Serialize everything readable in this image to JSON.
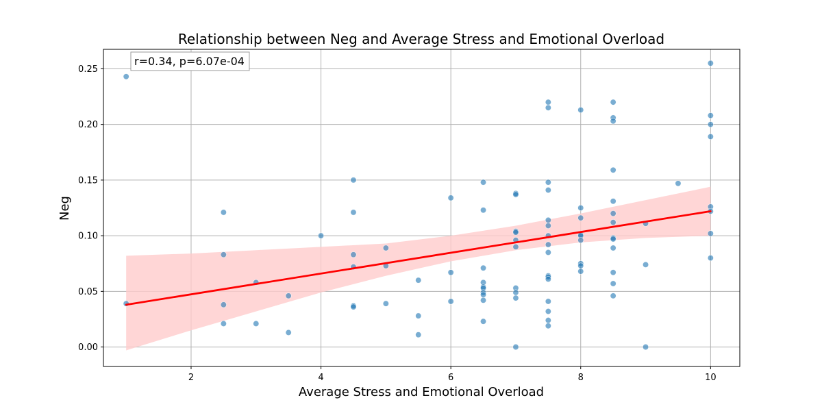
{
  "chart_data": {
    "type": "scatter",
    "title": "Relationship between Neg and Average Stress and Emotional Overload",
    "xlabel": "Average Stress and Emotional Overload",
    "ylabel": "Neg",
    "xlim": [
      0.65,
      10.45
    ],
    "ylim": [
      -0.0175,
      0.2675
    ],
    "xticks": [
      {
        "value": 2,
        "label": "2"
      },
      {
        "value": 4,
        "label": "4"
      },
      {
        "value": 6,
        "label": "6"
      },
      {
        "value": 8,
        "label": "8"
      },
      {
        "value": 10,
        "label": "10"
      }
    ],
    "yticks": [
      {
        "value": 0.0,
        "label": "0.00"
      },
      {
        "value": 0.05,
        "label": "0.05"
      },
      {
        "value": 0.1,
        "label": "0.10"
      },
      {
        "value": 0.15,
        "label": "0.15"
      },
      {
        "value": 0.2,
        "label": "0.20"
      },
      {
        "value": 0.25,
        "label": "0.25"
      }
    ],
    "grid": true,
    "annotation": "r=0.34, p=6.07e-04",
    "points": [
      [
        1.0,
        0.243
      ],
      [
        1.0,
        0.039
      ],
      [
        2.5,
        0.121
      ],
      [
        2.5,
        0.083
      ],
      [
        2.5,
        0.038
      ],
      [
        2.5,
        0.021
      ],
      [
        3.0,
        0.058
      ],
      [
        3.0,
        0.021
      ],
      [
        3.5,
        0.046
      ],
      [
        3.5,
        0.013
      ],
      [
        4.0,
        0.1
      ],
      [
        4.5,
        0.15
      ],
      [
        4.5,
        0.121
      ],
      [
        4.5,
        0.083
      ],
      [
        4.5,
        0.072
      ],
      [
        4.5,
        0.037
      ],
      [
        4.5,
        0.036
      ],
      [
        5.0,
        0.089
      ],
      [
        5.0,
        0.073
      ],
      [
        5.0,
        0.039
      ],
      [
        5.5,
        0.06
      ],
      [
        5.5,
        0.028
      ],
      [
        5.5,
        0.011
      ],
      [
        6.0,
        0.134
      ],
      [
        6.0,
        0.067
      ],
      [
        6.0,
        0.041
      ],
      [
        6.5,
        0.148
      ],
      [
        6.5,
        0.123
      ],
      [
        6.5,
        0.071
      ],
      [
        6.5,
        0.058
      ],
      [
        6.5,
        0.054
      ],
      [
        6.5,
        0.053
      ],
      [
        6.5,
        0.049
      ],
      [
        6.5,
        0.047
      ],
      [
        6.5,
        0.042
      ],
      [
        6.5,
        0.023
      ],
      [
        7.0,
        0.138
      ],
      [
        7.0,
        0.137
      ],
      [
        7.0,
        0.104
      ],
      [
        7.0,
        0.103
      ],
      [
        7.0,
        0.096
      ],
      [
        7.0,
        0.09
      ],
      [
        7.0,
        0.053
      ],
      [
        7.0,
        0.049
      ],
      [
        7.0,
        0.044
      ],
      [
        7.0,
        0.0
      ],
      [
        7.5,
        0.22
      ],
      [
        7.5,
        0.215
      ],
      [
        7.5,
        0.148
      ],
      [
        7.5,
        0.141
      ],
      [
        7.5,
        0.114
      ],
      [
        7.5,
        0.109
      ],
      [
        7.5,
        0.1
      ],
      [
        7.5,
        0.092
      ],
      [
        7.5,
        0.085
      ],
      [
        7.5,
        0.064
      ],
      [
        7.5,
        0.063
      ],
      [
        7.5,
        0.061
      ],
      [
        7.5,
        0.041
      ],
      [
        7.5,
        0.032
      ],
      [
        7.5,
        0.024
      ],
      [
        7.5,
        0.019
      ],
      [
        8.0,
        0.213
      ],
      [
        8.0,
        0.125
      ],
      [
        8.0,
        0.116
      ],
      [
        8.0,
        0.101
      ],
      [
        8.0,
        0.1
      ],
      [
        8.0,
        0.096
      ],
      [
        8.0,
        0.075
      ],
      [
        8.0,
        0.073
      ],
      [
        8.0,
        0.068
      ],
      [
        8.5,
        0.22
      ],
      [
        8.5,
        0.206
      ],
      [
        8.5,
        0.203
      ],
      [
        8.5,
        0.159
      ],
      [
        8.5,
        0.131
      ],
      [
        8.5,
        0.12
      ],
      [
        8.5,
        0.112
      ],
      [
        8.5,
        0.098
      ],
      [
        8.5,
        0.097
      ],
      [
        8.5,
        0.089
      ],
      [
        8.5,
        0.067
      ],
      [
        8.5,
        0.057
      ],
      [
        8.5,
        0.046
      ],
      [
        9.0,
        0.111
      ],
      [
        9.0,
        0.074
      ],
      [
        9.0,
        0.0
      ],
      [
        9.5,
        0.147
      ],
      [
        10.0,
        0.255
      ],
      [
        10.0,
        0.208
      ],
      [
        10.0,
        0.2
      ],
      [
        10.0,
        0.189
      ],
      [
        10.0,
        0.126
      ],
      [
        10.0,
        0.122
      ],
      [
        10.0,
        0.102
      ],
      [
        10.0,
        0.08
      ]
    ],
    "regression": {
      "x": [
        1.0,
        10.0
      ],
      "y": [
        0.038,
        0.122
      ],
      "ci_lower": [
        [
          1.0,
          -0.003
        ],
        [
          2.0,
          0.015
        ],
        [
          3.0,
          0.032
        ],
        [
          4.0,
          0.049
        ],
        [
          5.0,
          0.064
        ],
        [
          6.0,
          0.077
        ],
        [
          7.0,
          0.087
        ],
        [
          8.0,
          0.094
        ],
        [
          9.0,
          0.098
        ],
        [
          10.0,
          0.1
        ]
      ],
      "ci_upper": [
        [
          1.0,
          0.082
        ],
        [
          2.0,
          0.084
        ],
        [
          3.0,
          0.087
        ],
        [
          4.0,
          0.09
        ],
        [
          5.0,
          0.093
        ],
        [
          6.0,
          0.1
        ],
        [
          7.0,
          0.109
        ],
        [
          8.0,
          0.12
        ],
        [
          9.0,
          0.132
        ],
        [
          10.0,
          0.144
        ]
      ]
    },
    "colors": {
      "points": "#1f77b4",
      "points_edge": "#ffffff",
      "regression_line": "#ff0000",
      "ci_fill": "#ffcccc",
      "grid": "#b0b0b0",
      "axes": "#000000"
    }
  }
}
